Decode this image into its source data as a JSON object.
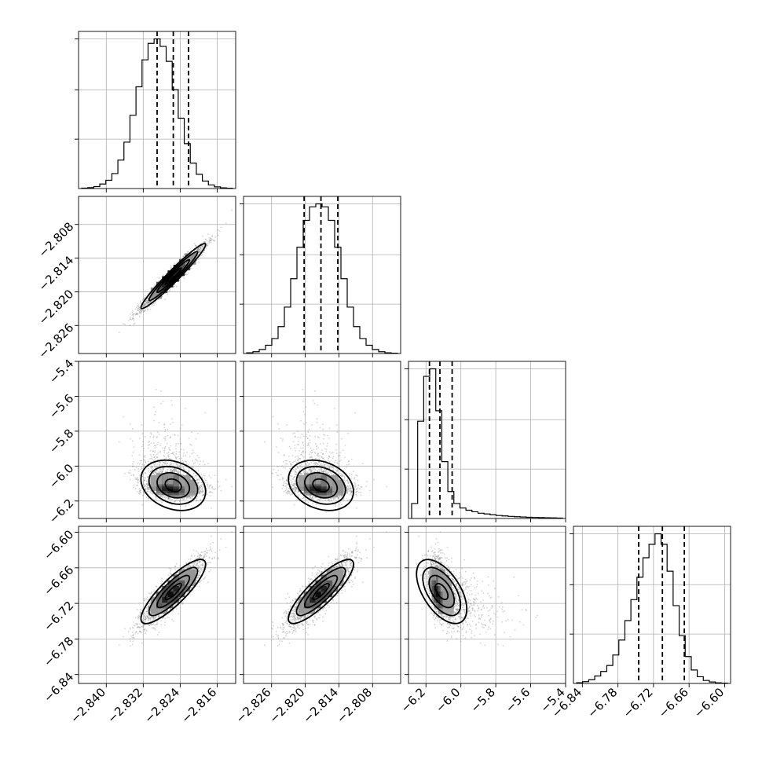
{
  "chart_data": {
    "type": "scatter",
    "n_params": 4,
    "params": [
      {
        "range": [
          -2.846,
          -2.812
        ],
        "ticks": [
          -2.84,
          -2.832,
          -2.824,
          -2.816
        ],
        "tick_labels": [
          "−2.840",
          "−2.832",
          "−2.824",
          "−2.816"
        ],
        "mean": -2.8255,
        "sigma": 0.0035,
        "skew": 0,
        "quantiles": [
          -2.829,
          -2.8255,
          -2.8222
        ],
        "hist": [
          0.003,
          0.006,
          0.013,
          0.03,
          0.055,
          0.1,
          0.19,
          0.31,
          0.49,
          0.68,
          0.86,
          0.97,
          1.0,
          0.95,
          0.85,
          0.66,
          0.47,
          0.3,
          0.17,
          0.095,
          0.05,
          0.024,
          0.011,
          0.005,
          0.002
        ]
      },
      {
        "range": [
          -2.831,
          -2.803
        ],
        "ticks": [
          -2.826,
          -2.82,
          -2.814,
          -2.808
        ],
        "tick_labels": [
          "−2.826",
          "−2.820",
          "−2.814",
          "−2.808"
        ],
        "mean": -2.8172,
        "sigma": 0.0029,
        "skew": 0,
        "quantiles": [
          -2.8202,
          -2.8172,
          -2.8142
        ],
        "hist": [
          0.005,
          0.012,
          0.027,
          0.055,
          0.1,
          0.18,
          0.31,
          0.5,
          0.71,
          0.89,
          0.98,
          1.0,
          0.98,
          0.89,
          0.71,
          0.5,
          0.31,
          0.18,
          0.1,
          0.055,
          0.027,
          0.012,
          0.005,
          0.002
        ]
      },
      {
        "range": [
          -6.3,
          -5.4
        ],
        "ticks": [
          -6.2,
          -6.0,
          -5.8,
          -5.6,
          -5.4
        ],
        "tick_labels": [
          "−6.2",
          "−6.0",
          "−5.8",
          "−5.6",
          "−5.4"
        ],
        "mean": -6.11,
        "sigma": 0.045,
        "skew": 1,
        "quantiles": [
          -6.18,
          -6.12,
          -6.05
        ],
        "hist": [
          0.1,
          0.65,
          0.95,
          1.0,
          0.72,
          0.38,
          0.18,
          0.1,
          0.07,
          0.055,
          0.045,
          0.035,
          0.03,
          0.025,
          0.02,
          0.017,
          0.014,
          0.012,
          0.01,
          0.008,
          0.007,
          0.006,
          0.005,
          0.004,
          0.003
        ]
      },
      {
        "range": [
          -6.855,
          -6.59
        ],
        "ticks": [
          -6.84,
          -6.78,
          -6.72,
          -6.66,
          -6.6
        ],
        "tick_labels": [
          "−6.84",
          "−6.78",
          "−6.72",
          "−6.66",
          "−6.60"
        ],
        "mean": -6.7,
        "sigma": 0.027,
        "skew": 0,
        "quantiles": [
          -6.745,
          -6.705,
          -6.668
        ],
        "hist": [
          0.005,
          0.012,
          0.025,
          0.05,
          0.08,
          0.12,
          0.19,
          0.29,
          0.42,
          0.56,
          0.71,
          0.84,
          0.93,
          1.0,
          0.93,
          0.75,
          0.52,
          0.32,
          0.18,
          0.09,
          0.045,
          0.02,
          0.01,
          0.004,
          0.002
        ]
      }
    ],
    "pairs": [
      {
        "row": 1,
        "col": 0,
        "correlation": 0.97
      },
      {
        "row": 2,
        "col": 0,
        "correlation": -0.25
      },
      {
        "row": 2,
        "col": 1,
        "correlation": -0.25
      },
      {
        "row": 3,
        "col": 0,
        "correlation": 0.85
      },
      {
        "row": 3,
        "col": 1,
        "correlation": 0.85
      },
      {
        "row": 3,
        "col": 2,
        "correlation": -0.55
      }
    ],
    "contour_levels_sigma": [
      0.5,
      1.0,
      1.5,
      2.0
    ],
    "grid": true,
    "colors": {
      "points": "#808080",
      "lines": "#000000",
      "density_max": "#000000"
    }
  }
}
